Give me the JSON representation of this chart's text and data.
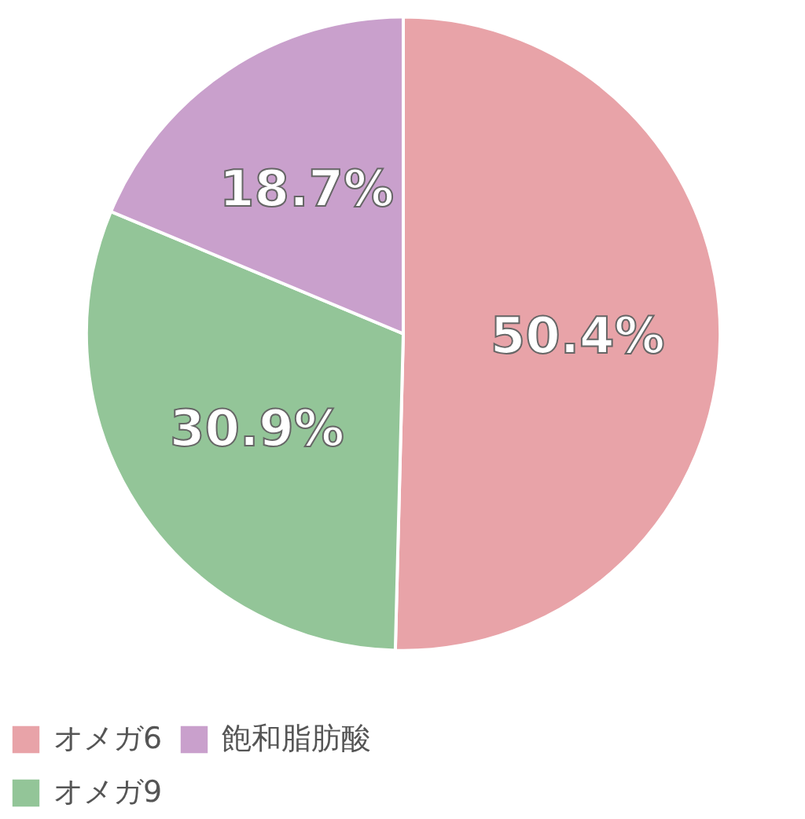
{
  "chart_data": {
    "type": "pie",
    "categories": [
      "オメガ6",
      "オメガ9",
      "飽和脂肪酸"
    ],
    "values": [
      50.4,
      30.9,
      18.7
    ],
    "colors": [
      "#e8a3a8",
      "#93c598",
      "#c9a0cc"
    ],
    "value_labels": [
      "50.4%",
      "30.9%",
      "18.7%"
    ],
    "legend": "bottom"
  }
}
